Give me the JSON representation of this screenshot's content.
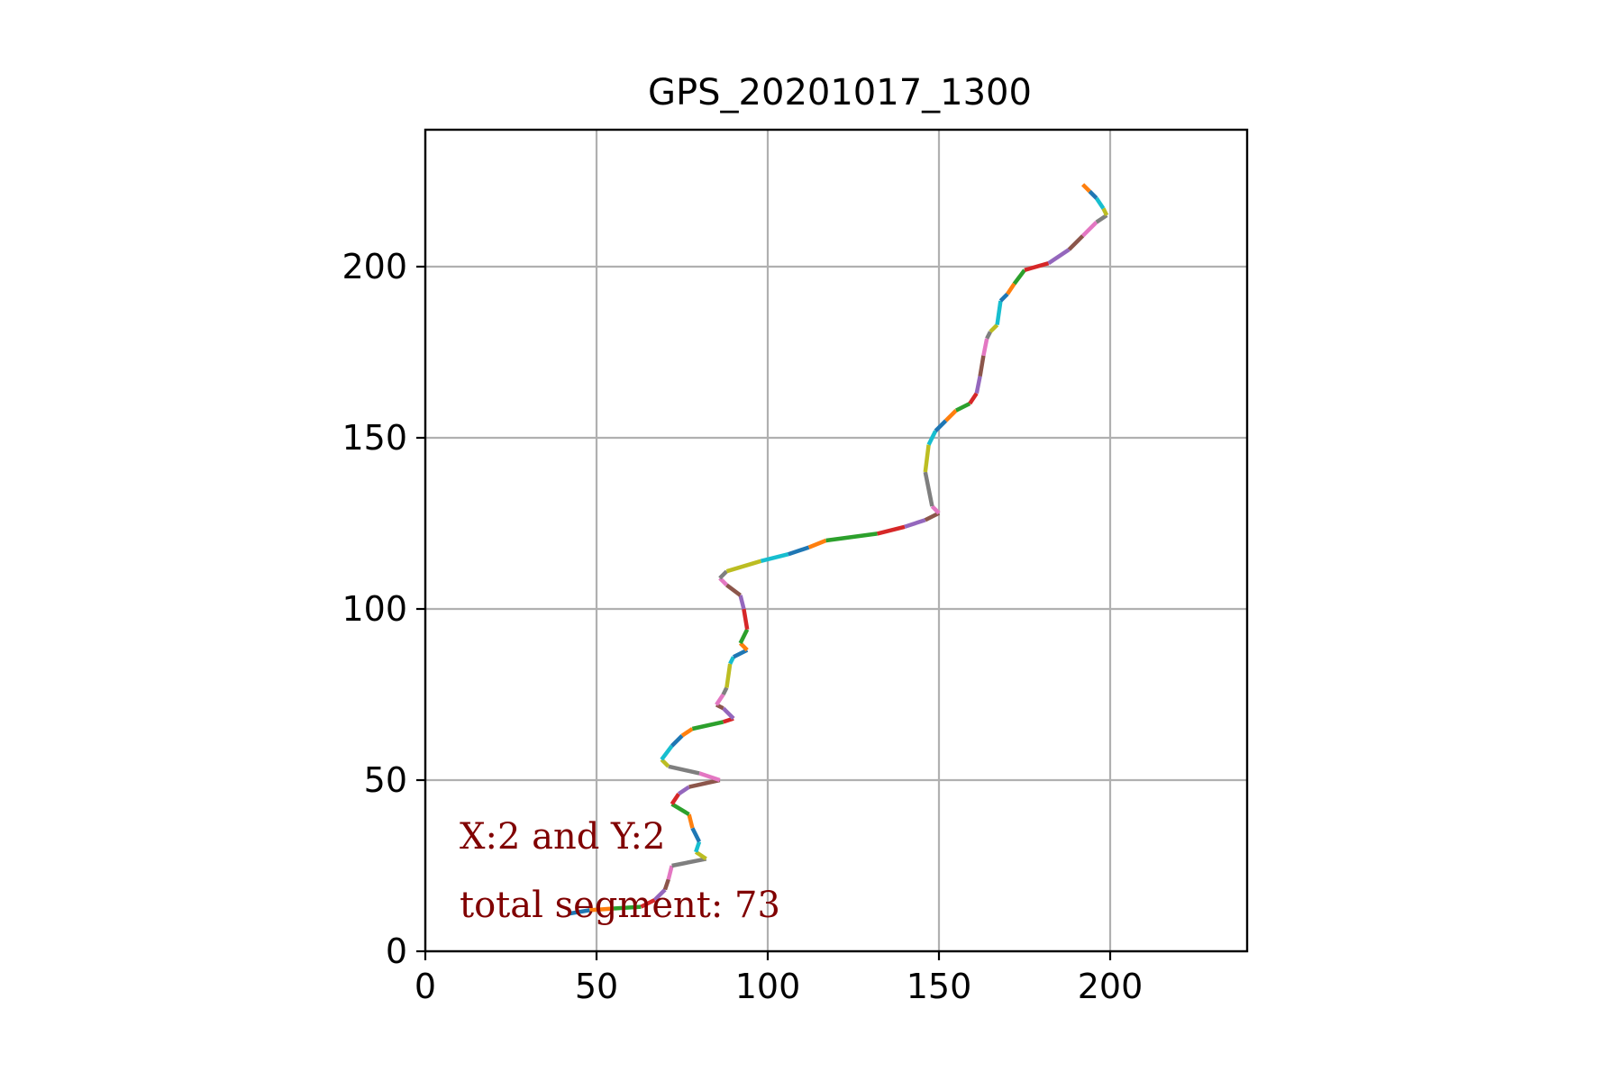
{
  "chart_data": {
    "type": "line",
    "title": "GPS_20201017_1300",
    "xlabel": "",
    "ylabel": "",
    "xlim": [
      0,
      240
    ],
    "ylim": [
      0,
      240
    ],
    "xticks": [
      0,
      50,
      100,
      150,
      200
    ],
    "yticks": [
      0,
      50,
      100,
      150,
      200
    ],
    "xtick_labels": [
      "0",
      "50",
      "100",
      "150",
      "200"
    ],
    "ytick_labels": [
      "0",
      "50",
      "100",
      "150",
      "200"
    ],
    "grid": true,
    "palette": [
      "#1f77b4",
      "#ff7f0e",
      "#2ca02c",
      "#d62728",
      "#9467bd",
      "#8c564b",
      "#e377c2",
      "#7f7f7f",
      "#bcbd22",
      "#17becf"
    ],
    "path": [
      [
        42,
        11
      ],
      [
        48,
        12
      ],
      [
        55,
        12.5
      ],
      [
        63,
        13
      ],
      [
        67,
        15
      ],
      [
        70,
        18
      ],
      [
        71,
        21
      ],
      [
        72,
        25
      ],
      [
        82,
        27
      ],
      [
        79,
        29
      ],
      [
        80,
        32
      ],
      [
        78,
        36
      ],
      [
        77,
        40
      ],
      [
        72,
        43
      ],
      [
        74,
        46
      ],
      [
        77,
        48
      ],
      [
        86,
        50
      ],
      [
        80,
        52
      ],
      [
        71,
        54
      ],
      [
        69,
        56
      ],
      [
        72,
        60
      ],
      [
        75,
        63
      ],
      [
        78,
        65
      ],
      [
        87,
        67
      ],
      [
        90,
        68
      ],
      [
        87,
        71
      ],
      [
        85,
        72
      ],
      [
        87,
        75
      ],
      [
        88,
        77
      ],
      [
        89,
        84
      ],
      [
        90,
        86
      ],
      [
        94,
        88
      ],
      [
        92,
        90
      ],
      [
        94,
        94
      ],
      [
        93,
        100
      ],
      [
        92,
        104
      ],
      [
        88,
        107
      ],
      [
        86,
        109
      ],
      [
        88,
        111
      ],
      [
        98,
        114
      ],
      [
        106,
        116
      ],
      [
        112,
        118
      ],
      [
        117,
        120
      ],
      [
        132,
        122
      ],
      [
        140,
        124
      ],
      [
        146,
        126
      ],
      [
        150,
        128
      ],
      [
        148,
        130
      ],
      [
        146,
        140
      ],
      [
        147,
        148
      ],
      [
        149,
        152
      ],
      [
        152,
        155
      ],
      [
        155,
        158
      ],
      [
        159,
        160
      ],
      [
        161,
        163
      ],
      [
        162,
        168
      ],
      [
        163,
        174
      ],
      [
        164,
        179
      ],
      [
        165,
        181
      ],
      [
        167,
        183
      ],
      [
        168,
        190
      ],
      [
        170,
        192
      ],
      [
        172,
        195
      ],
      [
        175,
        199
      ],
      [
        182,
        201
      ],
      [
        188,
        205
      ],
      [
        192,
        209
      ],
      [
        196,
        213
      ],
      [
        199,
        215
      ],
      [
        198,
        217
      ],
      [
        196,
        220
      ],
      [
        194,
        222
      ],
      [
        192,
        224
      ]
    ],
    "annotations": [
      {
        "text": "X:2 and Y:2",
        "x": 10,
        "y": 30,
        "color": "#800000"
      },
      {
        "text": "total segment: 73",
        "x": 10,
        "y": 10,
        "color": "#800000"
      }
    ]
  }
}
